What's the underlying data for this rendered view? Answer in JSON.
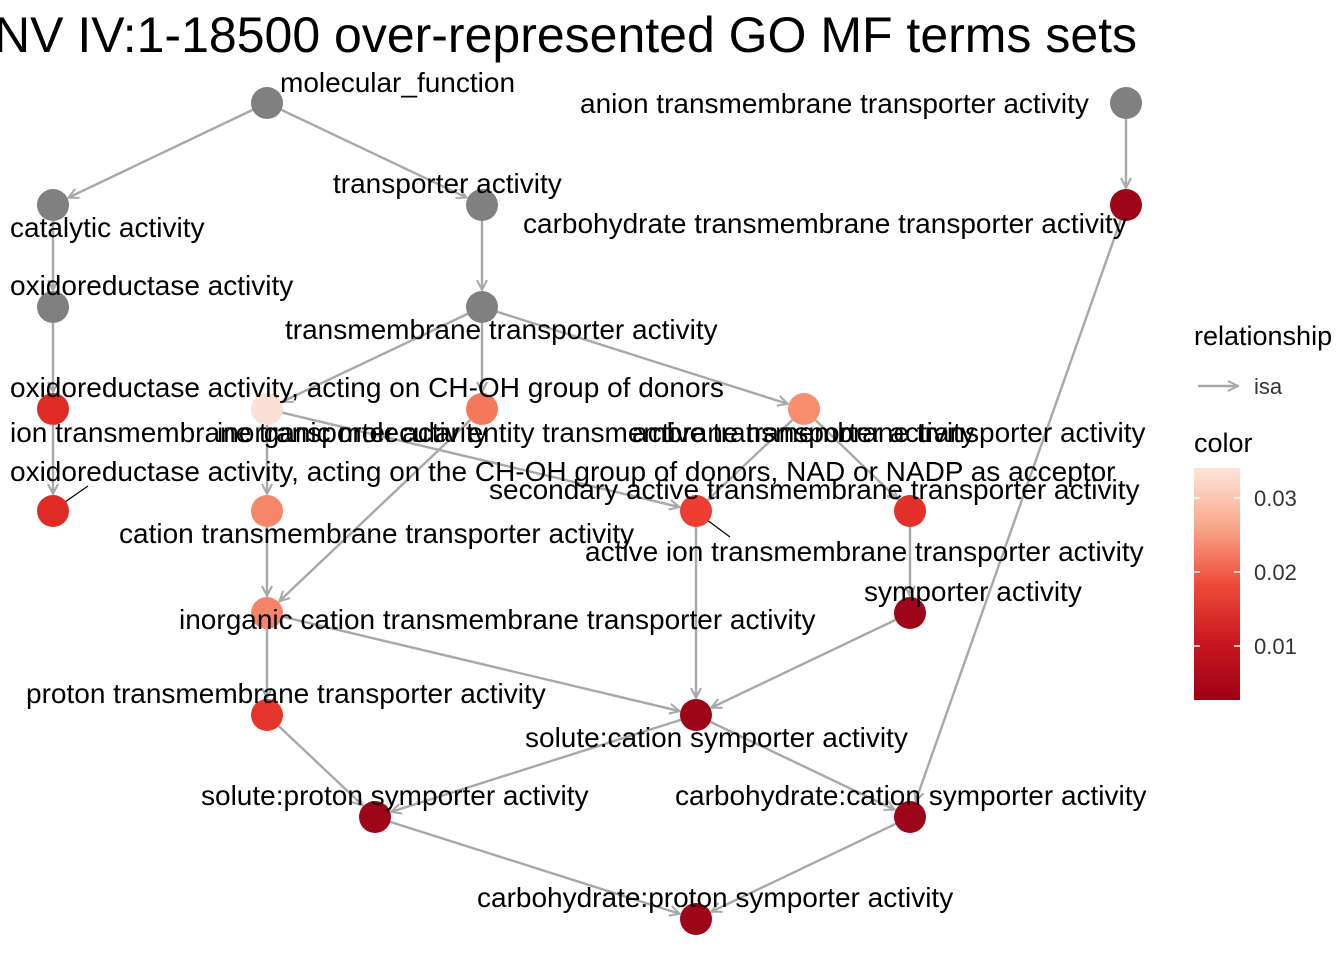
{
  "title": "NV IV:1-18500 over-represented GO MF terms sets",
  "colors": {
    "edge": "#a8a8a8",
    "unsignificant": "#808080",
    "scale_low": "#9e0016",
    "scale_mid": "#ea3b30",
    "scale_high": "#fee4da"
  },
  "legend": {
    "relationship_title": "relationship",
    "relationship_item": "isa",
    "color_title": "color",
    "color_ticks": [
      "0.03",
      "0.02",
      "0.01"
    ]
  },
  "nodes": [
    {
      "id": "mf",
      "label": "molecular_function",
      "color": "#808080"
    },
    {
      "id": "anion",
      "label": "anion transmembrane transporter activity",
      "color": "#808080"
    },
    {
      "id": "catalytic",
      "label": "catalytic activity",
      "color": "#808080"
    },
    {
      "id": "transporter",
      "label": "transporter activity",
      "color": "#808080"
    },
    {
      "id": "carbo_tm",
      "label": "carbohydrate transmembrane transporter activity",
      "color": "#9f0518"
    },
    {
      "id": "oxido",
      "label": "oxidoreductase activity",
      "color": "#808080"
    },
    {
      "id": "tm_transporter",
      "label": "transmembrane transporter activity",
      "color": "#808080"
    },
    {
      "id": "oxido_choh",
      "label": "oxidoreductase activity, acting on CH-OH group of donors",
      "color": "#e02a26"
    },
    {
      "id": "ion_tm",
      "label": "ion transmembrane transporter activity",
      "color": "#fde0d5"
    },
    {
      "id": "inorg_molec",
      "label": "inorganic molecular entity transmembrane transporter activity",
      "color": "#f4785c"
    },
    {
      "id": "active_tm",
      "label": "active transmembrane transporter activity",
      "color": "#f88d6f"
    },
    {
      "id": "oxido_nad",
      "label": "oxidoreductase activity, acting on the CH-OH group of donors, NAD or NADP as acceptor",
      "color": "#e02a26"
    },
    {
      "id": "secondary_active",
      "label": "secondary active transmembrane transporter activity",
      "color": "#e3312a"
    },
    {
      "id": "cation_tm",
      "label": "cation transmembrane transporter activity",
      "color": "#f6866a"
    },
    {
      "id": "active_ion",
      "label": "active ion transmembrane transporter activity",
      "color": "#ee3d33"
    },
    {
      "id": "symporter",
      "label": "symporter activity",
      "color": "#9f0518"
    },
    {
      "id": "inorg_cation",
      "label": "inorganic cation transmembrane transporter activity",
      "color": "#f4856a"
    },
    {
      "id": "proton_tm",
      "label": "proton transmembrane transporter activity",
      "color": "#e6352d"
    },
    {
      "id": "solute_cation",
      "label": "solute:cation symporter activity",
      "color": "#9f0518"
    },
    {
      "id": "solute_proton",
      "label": "solute:proton symporter activity",
      "color": "#9f0518"
    },
    {
      "id": "carbo_cation",
      "label": "carbohydrate:cation symporter activity",
      "color": "#9f0518"
    },
    {
      "id": "carbo_proton",
      "label": "carbohydrate:proton symporter activity",
      "color": "#9f0518"
    }
  ],
  "edges": [
    {
      "from": "mf",
      "to": "catalytic",
      "type": "isa"
    },
    {
      "from": "mf",
      "to": "transporter",
      "type": "isa"
    },
    {
      "from": "transporter",
      "to": "tm_transporter",
      "type": "isa"
    },
    {
      "from": "catalytic",
      "to": "oxido",
      "type": "isa"
    },
    {
      "from": "oxido",
      "to": "oxido_choh",
      "type": "isa"
    },
    {
      "from": "oxido_choh",
      "to": "oxido_nad",
      "type": "isa"
    },
    {
      "from": "anion",
      "to": "carbo_tm",
      "type": "isa"
    },
    {
      "from": "tm_transporter",
      "to": "ion_tm",
      "type": "isa"
    },
    {
      "from": "tm_transporter",
      "to": "inorg_molec",
      "type": "isa"
    },
    {
      "from": "tm_transporter",
      "to": "active_tm",
      "type": "isa"
    },
    {
      "from": "ion_tm",
      "to": "cation_tm",
      "type": "isa"
    },
    {
      "from": "ion_tm",
      "to": "active_ion",
      "type": "isa"
    },
    {
      "from": "active_tm",
      "to": "active_ion",
      "type": "isa"
    },
    {
      "from": "active_tm",
      "to": "secondary_active",
      "type": "isa"
    },
    {
      "from": "secondary_active",
      "to": "symporter",
      "type": "isa"
    },
    {
      "from": "cation_tm",
      "to": "inorg_cation",
      "type": "isa"
    },
    {
      "from": "inorg_molec",
      "to": "inorg_cation",
      "type": "isa"
    },
    {
      "from": "inorg_cation",
      "to": "proton_tm",
      "type": "isa"
    },
    {
      "from": "inorg_cation",
      "to": "solute_cation",
      "type": "isa"
    },
    {
      "from": "active_ion",
      "to": "solute_cation",
      "type": "isa"
    },
    {
      "from": "symporter",
      "to": "solute_cation",
      "type": "isa"
    },
    {
      "from": "proton_tm",
      "to": "solute_proton",
      "type": "isa"
    },
    {
      "from": "solute_cation",
      "to": "solute_proton",
      "type": "isa"
    },
    {
      "from": "solute_cation",
      "to": "carbo_cation",
      "type": "isa"
    },
    {
      "from": "carbo_tm",
      "to": "carbo_cation",
      "type": "isa"
    },
    {
      "from": "solute_proton",
      "to": "carbo_proton",
      "type": "isa"
    },
    {
      "from": "carbo_cation",
      "to": "carbo_proton",
      "type": "isa"
    }
  ]
}
